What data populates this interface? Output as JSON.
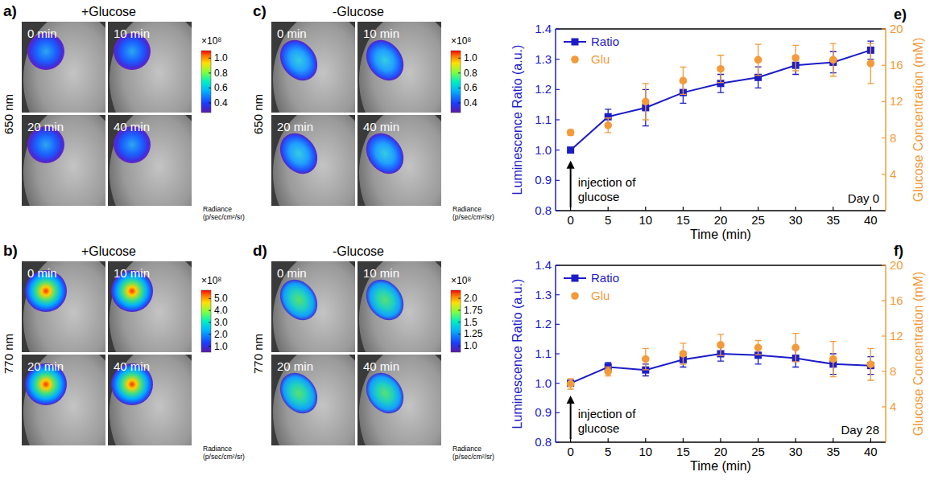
{
  "image_panels": [
    {
      "letter": "a)",
      "title": "+Glucose",
      "wavelength": "650 nm",
      "frames": [
        "0 min",
        "10 min",
        "20 min",
        "40 min"
      ],
      "colorbar": {
        "range": [
          0.27,
          1.1
        ],
        "ticks": [
          {
            "value": 1,
            "label": "1.0"
          },
          0.8,
          0.6,
          0.4
        ],
        "multiplier": "×10⁸",
        "title": "Radiance (p/sec/cm²/sr)"
      }
    },
    {
      "letter": "b)",
      "title": "+Glucose",
      "wavelength": "770 nm",
      "frames": [
        "0 min",
        "10 min",
        "20 min",
        "40 min"
      ],
      "colorbar": {
        "range": [
          0.5,
          5.7
        ],
        "ticks": [
          {
            "value": 5,
            "label": "5.0"
          },
          {
            "value": 4,
            "label": "4.0"
          },
          {
            "value": 3,
            "label": "3.0"
          },
          {
            "value": 2,
            "label": "2.0"
          },
          {
            "value": 1,
            "label": "1.0"
          }
        ],
        "multiplier": "×10⁸",
        "title": "Radiance (p/sec/cm²/sr)"
      }
    },
    {
      "letter": "c)",
      "title": "-Glucose",
      "wavelength": "650 nm",
      "frames": [
        "0 min",
        "10 min",
        "20 min",
        "40 min"
      ],
      "colorbar": {
        "range": [
          0.27,
          1.1
        ],
        "ticks": [
          {
            "value": 1,
            "label": "1.0"
          },
          0.8,
          0.6,
          0.4
        ],
        "multiplier": "×10⁸",
        "title": "Radiance (p/sec/cm²/sr)"
      }
    },
    {
      "letter": "d)",
      "title": "-Glucose",
      "wavelength": "770 nm",
      "frames": [
        "0 min",
        "10 min",
        "20 min",
        "40 min"
      ],
      "colorbar": {
        "range": [
          0.87,
          2.17
        ],
        "ticks": [
          {
            "value": 2,
            "label": "2.0"
          },
          1.75,
          1.5,
          1.25,
          {
            "value": 1,
            "label": "1.0"
          }
        ],
        "multiplier": "×10⁸",
        "title": "Radiance (p/sec/cm²/sr)"
      }
    }
  ],
  "chart_data": [
    {
      "type": "line",
      "letter": "e)",
      "x": [
        0,
        5,
        10,
        15,
        20,
        25,
        30,
        35,
        40
      ],
      "xlim": [
        -2,
        42
      ],
      "xticks": [
        0,
        5,
        10,
        15,
        20,
        25,
        30,
        35,
        40
      ],
      "xlabel": "Time (min)",
      "ylabel": "Luminescence Ratio (a.u.)",
      "y2label": "Glucose Concentration (mM)",
      "ylim": [
        0.8,
        1.4
      ],
      "yticks": [
        0.8,
        0.9,
        {
          "value": 1,
          "label": "1.0"
        },
        1.1,
        1.2,
        1.3,
        1.4
      ],
      "y2lim": [
        0,
        20
      ],
      "y2ticks": [
        4,
        8,
        12,
        16,
        20
      ],
      "grid": false,
      "legend": "upper left",
      "annotations": [
        "injection of glucose",
        "Day 0"
      ],
      "series": [
        {
          "name": "Ratio",
          "color": "#1c1cc8",
          "marker": "square",
          "line_style": "solid",
          "values": [
            1.0,
            1.11,
            1.14,
            1.19,
            1.22,
            1.24,
            1.28,
            1.29,
            1.33
          ],
          "errors": [
            0.005,
            0.025,
            0.06,
            0.035,
            0.03,
            0.035,
            0.03,
            0.035,
            0.03
          ]
        },
        {
          "name": "Glu",
          "color": "#f39a3a",
          "marker": "circle",
          "line_style": "none",
          "type": "scatter",
          "axis": "y2",
          "values": [
            8.6,
            9.4,
            12.0,
            14.3,
            15.6,
            16.6,
            16.8,
            16.6,
            16.2
          ],
          "errors": [
            0.3,
            0.8,
            2.0,
            1.5,
            1.5,
            1.7,
            1.4,
            1.8,
            2.2
          ]
        }
      ]
    },
    {
      "type": "line",
      "letter": "f)",
      "x": [
        0,
        5,
        10,
        15,
        20,
        25,
        30,
        35,
        40
      ],
      "xlim": [
        -2,
        42
      ],
      "xticks": [
        0,
        5,
        10,
        15,
        20,
        25,
        30,
        35,
        40
      ],
      "xlabel": "Time (min)",
      "ylabel": "Luminescence Ratio (a.u.)",
      "y2label": "Glucose Concentration (mM)",
      "ylim": [
        0.8,
        1.4
      ],
      "yticks": [
        0.8,
        0.9,
        {
          "value": 1,
          "label": "1.0"
        },
        1.1,
        1.2,
        1.3,
        1.4
      ],
      "y2lim": [
        0,
        20
      ],
      "y2ticks": [
        4,
        8,
        12,
        16,
        20
      ],
      "grid": false,
      "legend": "upper left",
      "annotations": [
        "injection of glucose",
        "Day 28"
      ],
      "series": [
        {
          "name": "Ratio",
          "color": "#1c1cc8",
          "marker": "square",
          "line_style": "solid",
          "values": [
            1.0,
            1.055,
            1.045,
            1.08,
            1.1,
            1.095,
            1.085,
            1.065,
            1.06
          ],
          "errors": [
            0.005,
            0.015,
            0.02,
            0.025,
            0.025,
            0.03,
            0.03,
            0.035,
            0.03
          ]
        },
        {
          "name": "Glu",
          "color": "#f39a3a",
          "marker": "circle",
          "line_style": "none",
          "type": "scatter",
          "axis": "y2",
          "values": [
            6.6,
            8.0,
            9.4,
            10.0,
            11.0,
            10.7,
            10.7,
            9.4,
            8.8
          ],
          "errors": [
            0.6,
            0.5,
            1.2,
            1.2,
            1.2,
            0.8,
            1.6,
            2.0,
            1.8
          ]
        }
      ]
    }
  ]
}
